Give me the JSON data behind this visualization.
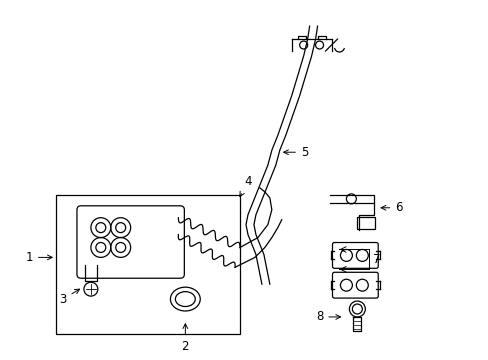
{
  "background_color": "#ffffff",
  "line_color": "#000000",
  "figsize": [
    4.89,
    3.6
  ],
  "dpi": 100,
  "lw": 0.9
}
